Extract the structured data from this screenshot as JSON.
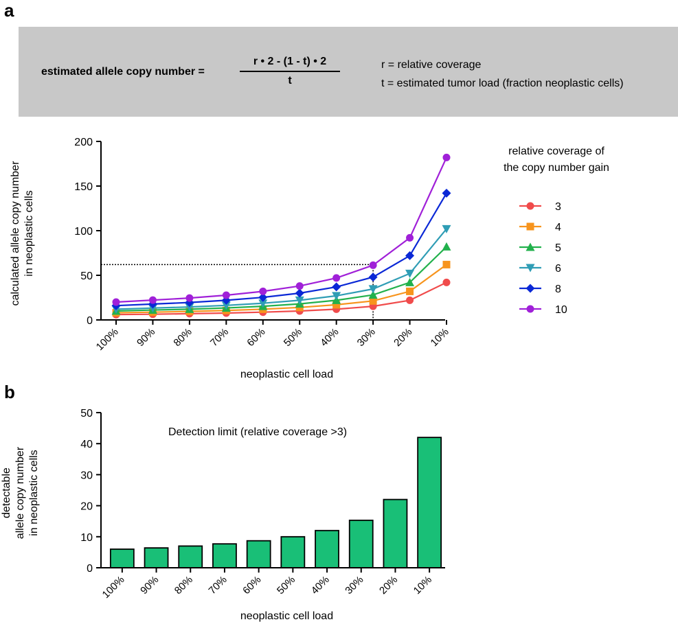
{
  "panels": {
    "a": "a",
    "b": "b"
  },
  "formula": {
    "lhs": "estimated allele copy number  =",
    "numerator": "r • 2 - (1 - t) • 2",
    "denominator": "t",
    "var_r": "r = relative coverage",
    "var_t": "t = estimated tumor load (fraction neoplastic cells)"
  },
  "chart_data": [
    {
      "type": "line",
      "ylabel_lines": [
        "calculated allele copy number",
        "in neoplastic cells"
      ],
      "xlabel": "neoplastic cell load",
      "categories": [
        "100%",
        "90%",
        "80%",
        "70%",
        "60%",
        "50%",
        "40%",
        "30%",
        "20%",
        "10%"
      ],
      "ylim": [
        0,
        200
      ],
      "yticks": [
        0,
        50,
        100,
        150,
        200
      ],
      "legend_title_lines": [
        "relative coverage of",
        "the copy number gain"
      ],
      "legend_position": "right",
      "reference_lines": {
        "y": 62,
        "x_category": "30%"
      },
      "series": [
        {
          "name": "3",
          "color": "#f04b4b",
          "marker": "circle",
          "values": [
            6,
            6.4,
            7,
            7.7,
            8.7,
            10,
            12,
            15.3,
            22,
            42
          ]
        },
        {
          "name": "4",
          "color": "#f7941d",
          "marker": "square",
          "values": [
            8,
            8.7,
            9.5,
            10.6,
            12,
            14,
            17,
            21.3,
            32,
            62
          ]
        },
        {
          "name": "5",
          "color": "#22b14c",
          "marker": "triangle-up",
          "values": [
            10,
            11.1,
            12,
            13.4,
            15.3,
            18,
            22,
            28,
            42,
            82
          ]
        },
        {
          "name": "6",
          "color": "#2f9db5",
          "marker": "triangle-down",
          "values": [
            12,
            13.3,
            14.5,
            16.3,
            18.7,
            22,
            27,
            34.7,
            52,
            102
          ]
        },
        {
          "name": "8",
          "color": "#0a28d6",
          "marker": "diamond",
          "values": [
            16,
            17.8,
            19.5,
            22,
            25.3,
            30,
            37,
            48,
            72,
            142
          ]
        },
        {
          "name": "10",
          "color": "#a020d8",
          "marker": "circle",
          "values": [
            20,
            22.2,
            24.5,
            27.7,
            32,
            38,
            47,
            61.3,
            92,
            182
          ]
        }
      ]
    },
    {
      "type": "bar",
      "ylabel_lines": [
        "detectable",
        "allele copy number",
        "in neoplastic cells"
      ],
      "xlabel": "neoplastic cell load",
      "annotation": "Detection limit (relative coverage >3)",
      "categories": [
        "100%",
        "90%",
        "80%",
        "70%",
        "60%",
        "50%",
        "40%",
        "30%",
        "20%",
        "10%"
      ],
      "values": [
        6,
        6.4,
        7,
        7.7,
        8.7,
        10,
        12,
        15.3,
        22,
        42
      ],
      "ylim": [
        0,
        50
      ],
      "yticks": [
        0,
        10,
        20,
        30,
        40,
        50
      ],
      "bar_color": "#19bf77"
    }
  ]
}
